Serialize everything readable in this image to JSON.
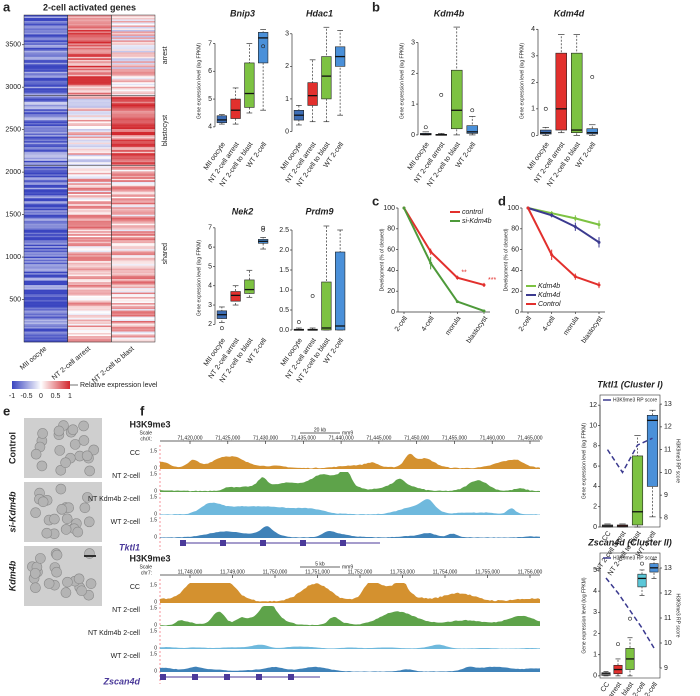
{
  "panel_labels": [
    "a",
    "b",
    "c",
    "d",
    "e",
    "f"
  ],
  "chart_data": [
    {
      "type": "heatmap",
      "title": "2-cell activated genes",
      "categories": [
        "MII oocyte",
        "NT 2-cell arrest",
        "NT 2-cell to blast"
      ],
      "ylim": [
        0,
        3850
      ],
      "yticks": [
        500,
        1000,
        1500,
        2000,
        2500,
        3000,
        3500
      ],
      "clusters": [
        {
          "name": "arrest",
          "from": 2900,
          "to": 3850
        },
        {
          "name": "blastocyst",
          "from": 2080,
          "to": 2900
        },
        {
          "name": "shared",
          "from": 0,
          "to": 2080
        }
      ],
      "colorbar_ticks": [
        -1,
        -0.5,
        0,
        0.5,
        1
      ],
      "colorbar_label": "Relative expression level"
    },
    {
      "type": "box",
      "title": "Bnip3",
      "ylabel": "Gene expression level (log FPKM)",
      "categories": [
        "MII oocyte",
        "NT 2-cell arrest",
        "NT 2-cell to blast",
        "WT 2-cell"
      ],
      "ylim": [
        3.6,
        7.7
      ],
      "yticks": [
        4,
        5,
        6,
        7
      ],
      "colors": [
        "#3d6db5",
        "#e2302d",
        "#7dc242",
        "#4a90d9"
      ],
      "min": [
        4.1,
        4.1,
        4.5,
        4.6
      ],
      "q1": [
        4.15,
        4.3,
        4.7,
        6.3
      ],
      "median": [
        4.25,
        4.6,
        5.2,
        7.2
      ],
      "q3": [
        4.4,
        5.0,
        6.3,
        7.4
      ],
      "max": [
        4.45,
        5.4,
        7.0,
        7.5
      ],
      "outliers": [
        [],
        [],
        [],
        [
          6.9
        ]
      ]
    },
    {
      "type": "box",
      "title": "Hdac1",
      "categories": [
        "MII oocyte",
        "NT 2-cell arrest",
        "NT 2-cell to blast",
        "WT 2-cell"
      ],
      "ylim": [
        -0.2,
        3.3
      ],
      "yticks": [
        0,
        1,
        2,
        3
      ],
      "colors": [
        "#3d6db5",
        "#e2302d",
        "#7dc242",
        "#4a90d9"
      ],
      "min": [
        0.2,
        0.3,
        0.3,
        0.5
      ],
      "q1": [
        0.35,
        0.8,
        1.0,
        2.0
      ],
      "median": [
        0.5,
        1.1,
        1.7,
        2.3
      ],
      "q3": [
        0.65,
        1.5,
        2.3,
        2.6
      ],
      "max": [
        0.8,
        2.2,
        3.2,
        3.1
      ],
      "outliers": [
        [],
        [],
        [],
        []
      ]
    },
    {
      "type": "box",
      "title": "Kdm4b",
      "ylabel": "Gene expression level (log FPKM)",
      "categories": [
        "MII oocyte",
        "NT 2-cell arrest",
        "NT 2-cell to blast",
        "WT 2-cell"
      ],
      "ylim": [
        -0.1,
        3.6
      ],
      "yticks": [
        0,
        1,
        2,
        3
      ],
      "colors": [
        "#3d6db5",
        "#e2302d",
        "#7dc242",
        "#4a90d9"
      ],
      "min": [
        0,
        0,
        0,
        0
      ],
      "q1": [
        0,
        0,
        0.2,
        0.05
      ],
      "median": [
        0.02,
        0,
        0.8,
        0.1
      ],
      "q3": [
        0.05,
        0.02,
        2.1,
        0.3
      ],
      "max": [
        0.1,
        0.05,
        3.5,
        0.6
      ],
      "outliers": [
        [
          0.25
        ],
        [
          1.3
        ],
        [],
        [
          0.8
        ]
      ]
    },
    {
      "type": "box",
      "title": "Kdm4d",
      "ylabel": "Gene expression level (log FPKM)",
      "categories": [
        "MII oocyte",
        "NT 2-cell arrest",
        "NT 2-cell to blast",
        "WT 2-cell"
      ],
      "ylim": [
        -0.1,
        4.2
      ],
      "yticks": [
        0,
        1,
        2,
        3,
        4
      ],
      "colors": [
        "#3d6db5",
        "#e2302d",
        "#7dc242",
        "#4a90d9"
      ],
      "min": [
        0,
        0.1,
        0,
        0
      ],
      "q1": [
        0.05,
        0.2,
        0.1,
        0.05
      ],
      "median": [
        0.1,
        1.0,
        0.2,
        0.1
      ],
      "q3": [
        0.2,
        3.1,
        3.1,
        0.25
      ],
      "max": [
        0.3,
        3.8,
        3.8,
        0.4
      ],
      "outliers": [
        [
          1.0
        ],
        [],
        [],
        [
          2.2
        ]
      ]
    },
    {
      "type": "box",
      "title": "Nek2",
      "ylabel": "Gene expression level (log FPKM)",
      "categories": [
        "MII oocyte",
        "NT 2-cell arrest",
        "NT 2-cell to blast",
        "WT 2-cell"
      ],
      "ylim": [
        1.5,
        7.3
      ],
      "yticks": [
        2,
        3,
        4,
        5,
        6,
        7
      ],
      "colors": [
        "#3d6db5",
        "#e2302d",
        "#7dc242",
        "#4a90d9"
      ],
      "min": [
        2.1,
        3.0,
        3.4,
        5.9
      ],
      "q1": [
        2.3,
        3.2,
        3.6,
        6.2
      ],
      "median": [
        2.5,
        3.5,
        3.8,
        6.3
      ],
      "q3": [
        2.7,
        3.7,
        4.3,
        6.4
      ],
      "max": [
        2.9,
        4.0,
        4.8,
        6.5
      ],
      "outliers": [
        [
          1.8
        ],
        [],
        [],
        [
          6.9,
          7.0
        ]
      ]
    },
    {
      "type": "box",
      "title": "Prdm9",
      "categories": [
        "MII oocyte",
        "NT 2-cell arrest",
        "NT 2-cell to blast",
        "WT 2-cell"
      ],
      "ylim": [
        -0.1,
        2.7
      ],
      "yticks": [
        {
          "value": 0,
          "label": "0.0"
        },
        0.5,
        {
          "value": 1,
          "label": "1.0"
        },
        1.5,
        {
          "value": 2,
          "label": "2.0"
        },
        2.5
      ],
      "colors": [
        "#3d6db5",
        "#e2302d",
        "#7dc242",
        "#4a90d9"
      ],
      "min": [
        0,
        0,
        0,
        0
      ],
      "q1": [
        0,
        0,
        0,
        0
      ],
      "median": [
        0,
        0,
        0.05,
        0.1
      ],
      "q3": [
        0.02,
        0.02,
        1.2,
        1.95
      ],
      "max": [
        0.05,
        0.05,
        2.6,
        2.5
      ],
      "outliers": [
        [
          0.2
        ],
        [
          0.85
        ],
        [],
        []
      ]
    },
    {
      "type": "line",
      "ylabel": "Development (% of cleaved)",
      "categories": [
        "2-cell",
        "4-cell",
        "morula",
        "blastocyst"
      ],
      "ylim": [
        0,
        100
      ],
      "yticks": [
        0,
        20,
        40,
        60,
        80,
        100
      ],
      "legend": "upper right",
      "annotations": [
        "**",
        "***"
      ],
      "series": [
        {
          "name": "control",
          "color": "#e2302d",
          "values": [
            100,
            58,
            33,
            26
          ],
          "errors": [
            0,
            3,
            2,
            2
          ]
        },
        {
          "name": "si-Kdm4b",
          "color": "#4e9a3a",
          "values": [
            100,
            47,
            10,
            1
          ],
          "errors": [
            0,
            6,
            1,
            1
          ]
        }
      ]
    },
    {
      "type": "line",
      "ylabel": "Development (% of cleaved)",
      "categories": [
        "2-cell",
        "4-cell",
        "morula",
        "blastocyst"
      ],
      "ylim": [
        0,
        100
      ],
      "yticks": [
        0,
        20,
        40,
        60,
        80,
        100
      ],
      "legend": "lower left",
      "series": [
        {
          "name": "Kdm4b",
          "color": "#7dc242",
          "values": [
            100,
            95,
            90,
            84
          ],
          "errors": [
            0,
            2,
            3,
            4
          ]
        },
        {
          "name": "Kdm4d",
          "color": "#3b3a8f",
          "values": [
            100,
            93,
            82,
            67
          ],
          "errors": [
            0,
            2,
            4,
            5
          ]
        },
        {
          "name": "Control",
          "color": "#e2302d",
          "values": [
            100,
            55,
            34,
            26
          ],
          "errors": [
            0,
            5,
            3,
            3
          ]
        }
      ]
    },
    {
      "type": "box",
      "title": "Tktl1 (Cluster I)",
      "ylabel": "Gene expression level (log FPKM)",
      "y2label": "H3K9me3 RP score",
      "categories": [
        "CC",
        "NT 2-cell arrest",
        "NT 2-cell to blast",
        "WT 2-cell"
      ],
      "ylim": [
        0,
        13
      ],
      "yticks": [
        0,
        2,
        4,
        6,
        8,
        10,
        12
      ],
      "y2lim": [
        7.6,
        13.4
      ],
      "y2ticks": [
        8,
        9,
        10,
        11,
        12,
        13
      ],
      "colors": [
        "#b5b5b5",
        "#e2302d",
        "#7dc242",
        "#4a90d9"
      ],
      "min": [
        0,
        0,
        0,
        1
      ],
      "q1": [
        0,
        0,
        0.2,
        4
      ],
      "median": [
        0.1,
        0.1,
        1.5,
        10.5
      ],
      "q3": [
        0.2,
        0.2,
        7,
        11
      ],
      "max": [
        0.3,
        0.3,
        9,
        11.5
      ],
      "outliers": [
        [],
        [],
        [],
        []
      ],
      "series": [
        {
          "name": "H3K9me3 RP score",
          "axis": "y2",
          "color": "#3b3a8f",
          "values": [
            11,
            10.0,
            11.2,
            11.5
          ]
        }
      ]
    },
    {
      "type": "box",
      "title": "Zscan4d (Cluster II)",
      "ylabel": "Gene expression level (log FPKM)",
      "y2label": "H3K9me3 RP score",
      "categories": [
        "CC",
        "NT 2-cell arrest",
        "NT 2-cell to blast",
        "NT Kdm4b 2-cell",
        "WT 2-cell"
      ],
      "ylim": [
        -0.1,
        5.8
      ],
      "yticks": [
        0,
        1,
        2,
        3,
        4,
        5
      ],
      "y2lim": [
        8.6,
        13.6
      ],
      "y2ticks": [
        9,
        10,
        11,
        12,
        13
      ],
      "colors": [
        "#b5b5b5",
        "#e2302d",
        "#7dc242",
        "#5bc7d8",
        "#4a90d9"
      ],
      "min": [
        0,
        0,
        0,
        3.8,
        4.6
      ],
      "q1": [
        0.02,
        0.1,
        0.3,
        4.2,
        4.9
      ],
      "median": [
        0.1,
        0.3,
        0.8,
        4.6,
        5.1
      ],
      "q3": [
        0.15,
        0.5,
        1.3,
        4.8,
        5.3
      ],
      "max": [
        0.2,
        0.8,
        1.8,
        5.0,
        5.5
      ],
      "outliers": [
        [],
        [
          1.5
        ],
        [
          2.7
        ],
        [
          5.3
        ],
        []
      ],
      "series": [
        {
          "name": "H3K9me3 RP score",
          "axis": "y2",
          "color": "#3b3a8f",
          "values": [
            12.6,
            12.0,
            11.3,
            10.6,
            9.8
          ]
        }
      ]
    }
  ],
  "images": {
    "labels": [
      "Control",
      "si-Kdm4b",
      "Kdm4b"
    ]
  },
  "browser": [
    {
      "mark": "H3K9me3",
      "scale": "Scale",
      "chrom": "chrX:",
      "scalebar": "20 kb",
      "assembly": "mm9",
      "coords": [
        "71,420,000",
        "71,425,000",
        "71,430,000",
        "71,435,000",
        "71,440,000",
        "71,445,000",
        "71,450,000",
        "71,455,000",
        "71,460,000",
        "71,465,000"
      ],
      "tracks": [
        {
          "name": "CC",
          "max": "1.5",
          "min": "0"
        },
        {
          "name": "NT 2-cell",
          "max": "1.5",
          "min": "0"
        },
        {
          "name": "NT Kdm4b 2-cell",
          "max": "1.5",
          "min": "0"
        },
        {
          "name": "WT 2-cell",
          "max": "1.5",
          "min": "0"
        }
      ],
      "gene": "Tktl1"
    },
    {
      "mark": "H3K9me3",
      "scale": "Scale",
      "chrom": "chr7:",
      "scalebar": "5 kb",
      "assembly": "mm9",
      "coords": [
        "11,748,000",
        "11,749,000",
        "11,750,000",
        "11,751,000",
        "11,752,000",
        "11,753,000",
        "11,754,000",
        "11,755,000",
        "11,756,000"
      ],
      "tracks": [
        {
          "name": "CC",
          "max": "1.5",
          "min": "0"
        },
        {
          "name": "NT 2-cell",
          "max": "1.5",
          "min": "0"
        },
        {
          "name": "NT Kdm4b 2-cell",
          "max": "1.5",
          "min": "0"
        },
        {
          "name": "WT 2-cell",
          "max": "1.5",
          "min": "0"
        }
      ],
      "gene": "Zscan4d"
    }
  ]
}
